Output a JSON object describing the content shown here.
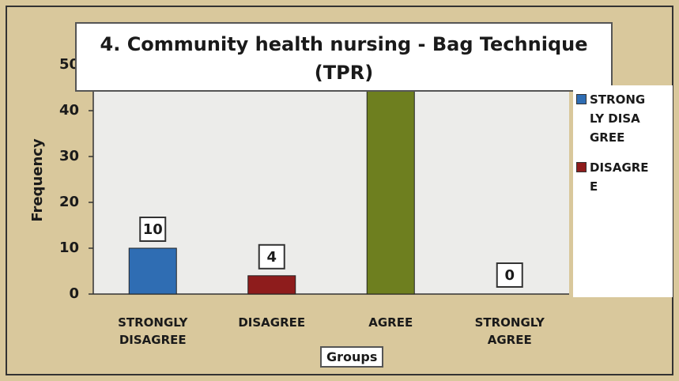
{
  "chart_data": {
    "type": "bar",
    "title": "4. Community health nursing - Bag Technique (TPR)",
    "x_label": "Groups",
    "y_label": "Frequency",
    "categories": [
      "STRONGLY DISAGREE",
      "DISAGREE",
      "AGREE",
      "STRONGLY AGREE"
    ],
    "values": [
      10,
      4,
      46,
      0
    ],
    "colors": [
      "#2f6db3",
      "#8e1c1c",
      "#6e7f1f",
      "#7aa0c8"
    ],
    "legend": [
      {
        "name": "STRONGLY DISAGREE",
        "color": "#2f6db3"
      },
      {
        "name": "DISAGREE",
        "color": "#8e1c1c"
      }
    ],
    "ylim": [
      0,
      50
    ],
    "yticks": [
      0,
      10,
      20,
      30,
      40,
      50
    ]
  }
}
